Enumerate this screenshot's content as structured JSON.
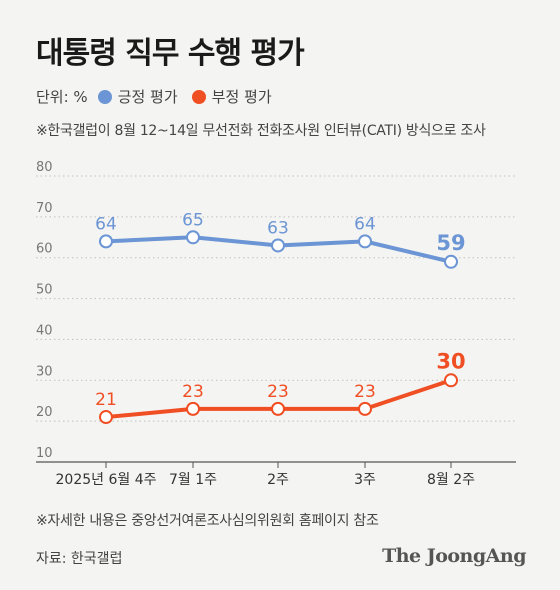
{
  "header": {
    "title": "대통령 직무 수행 평가",
    "unit_label": "단위: %",
    "survey_note": "※한국갤럽이 8월 12~14일 무선전화 전화조사원 인터뷰(CATI) 방식으로 조사"
  },
  "footer": {
    "note": "※자세한 내용은 중앙선거여론조사심의위원회 홈페이지 참조",
    "source": "자료: 한국갤럽",
    "brand": "The JoongAng"
  },
  "chart_data": {
    "type": "line",
    "categories": [
      "2025년 6월 4주",
      "7월 1주",
      "2주",
      "3주",
      "8월 2주"
    ],
    "ylim": [
      10,
      80
    ],
    "yticks": [
      10,
      20,
      30,
      40,
      50,
      60,
      70,
      80
    ],
    "grid": true,
    "legend": "top-left",
    "series": [
      {
        "name": "긍정 평가",
        "color": "#6b95d4",
        "values": [
          64,
          65,
          63,
          64,
          59
        ]
      },
      {
        "name": "부정 평가",
        "color": "#f04e23",
        "values": [
          21,
          23,
          23,
          23,
          30
        ]
      }
    ]
  }
}
